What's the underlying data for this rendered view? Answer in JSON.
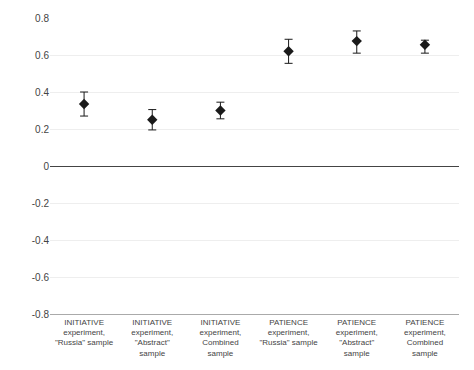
{
  "chart_data": {
    "type": "scatter",
    "categories": [
      "INITIATIVE\nexperiment,\n\"Russia\" sample",
      "INITIATIVE\nexperiment,\n\"Abstract\"\nsample",
      "INITIATIVE\nexperiment,\nCombined\nsample",
      "PATIENCE\nexperiment,\n\"Russia\" sample",
      "PATIENCE\nexperiment,\n\"Abstract\"\nsample",
      "PATIENCE\nexperiment,\nCombined\nsample"
    ],
    "values": [
      0.335,
      0.25,
      0.3,
      0.62,
      0.675,
      0.655
    ],
    "error_lower": [
      0.065,
      0.055,
      0.045,
      0.065,
      0.065,
      0.045
    ],
    "error_upper": [
      0.065,
      0.055,
      0.045,
      0.065,
      0.055,
      0.025
    ],
    "marker": "diamond",
    "color": "#1a1a1a",
    "ylim": [
      -0.8,
      0.8
    ],
    "yticks": [
      -0.8,
      -0.6,
      -0.4,
      -0.2,
      0,
      0.2,
      0.4,
      0.6,
      0.8
    ],
    "grid": true
  }
}
